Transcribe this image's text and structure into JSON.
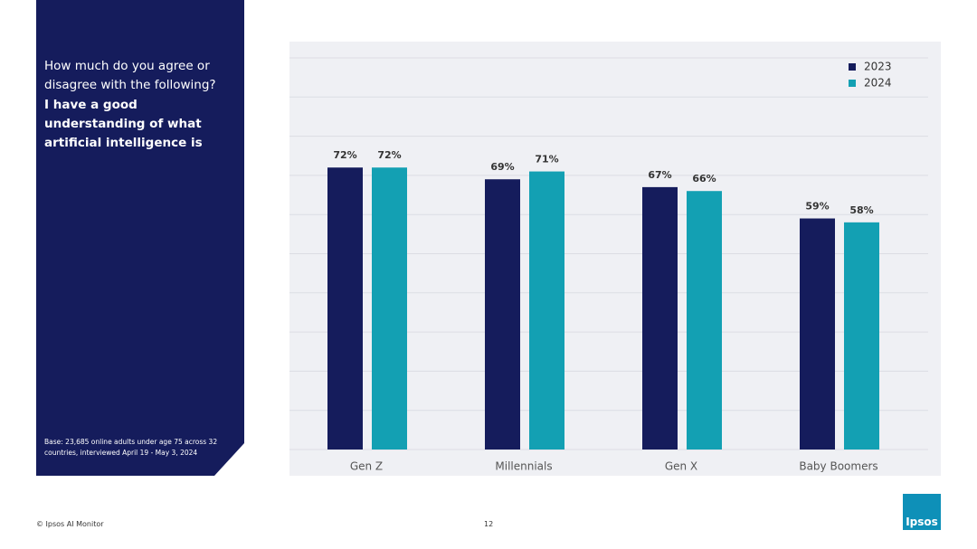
{
  "slide": {
    "question": "How much do you agree or disagree with the following?",
    "statement": "I have a good understanding of what artificial intelligence is",
    "base_note": "Base: 23,685 online adults under age 75 across 32 countries, interviewed April 19 - May 3, 2024",
    "footer": "© Ipsos AI Monitor",
    "page_number": "12",
    "logo": "Ipsos"
  },
  "chart_data": {
    "type": "bar",
    "categories": [
      "Gen Z",
      "Millennials",
      "Gen X",
      "Baby Boomers"
    ],
    "series": [
      {
        "name": "2023",
        "color": "#151c5c",
        "values": [
          72,
          69,
          67,
          59
        ],
        "value_labels": [
          "72%",
          "69%",
          "67%",
          "59%"
        ]
      },
      {
        "name": "2024",
        "color": "#13a0b3",
        "values": [
          72,
          71,
          66,
          58
        ],
        "value_labels": [
          "72%",
          "71%",
          "66%",
          "58%"
        ]
      }
    ],
    "ylim": [
      0,
      100
    ],
    "yticks": [
      0,
      10,
      20,
      30,
      40,
      50,
      60,
      70,
      80,
      90,
      100
    ],
    "ytick_labels": false,
    "grid": true,
    "legend": "top-right"
  }
}
